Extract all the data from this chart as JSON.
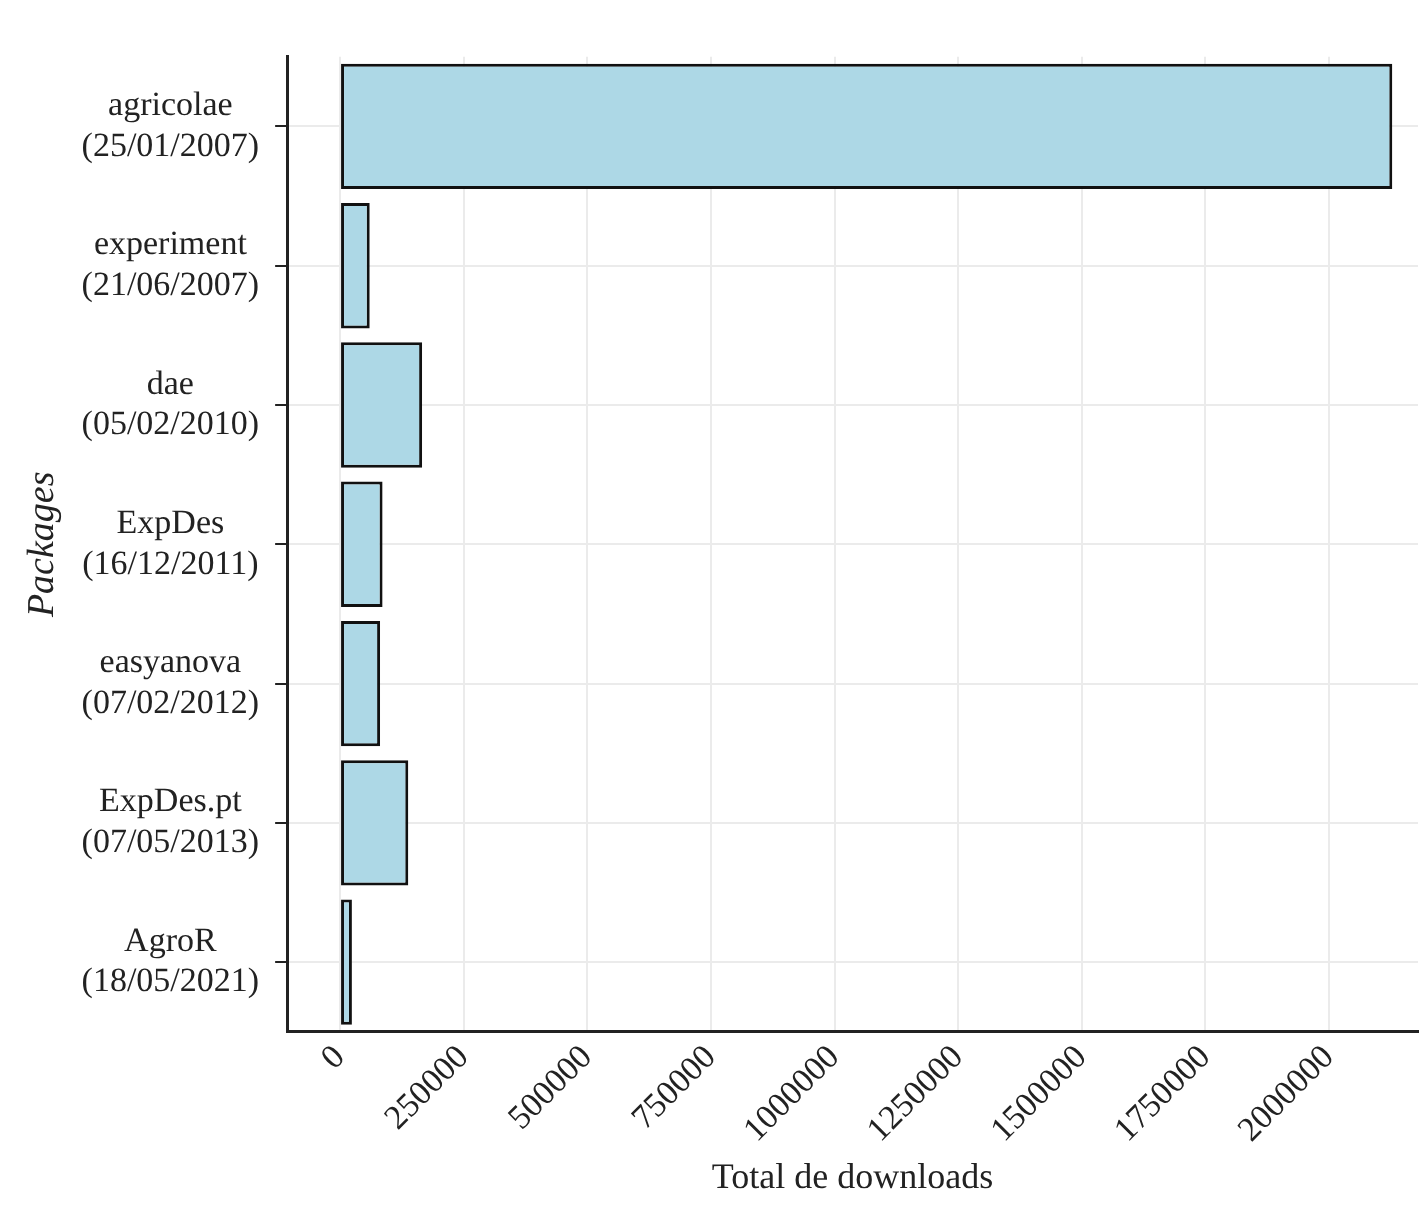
{
  "chart_data": {
    "type": "bar",
    "orientation": "horizontal",
    "xlabel": "Total de downloads",
    "ylabel": "Packages",
    "categories": [
      "agricolae\n(25/01/2007)",
      "experiment\n(21/06/2007)",
      "dae\n(05/02/2010)",
      "ExpDes\n(16/12/2011)",
      "easyanova\n(07/02/2012)",
      "ExpDes.pt\n(07/05/2013)",
      "AgroR\n(18/05/2021)"
    ],
    "values": [
      2128000,
      60000,
      166000,
      86000,
      81000,
      138000,
      24000
    ],
    "color": "#add8e6",
    "xlim": [
      -107000,
      2180000
    ],
    "xticks": [
      0,
      250000,
      500000,
      750000,
      1000000,
      1250000,
      1500000,
      1750000,
      2000000
    ],
    "grid": true
  }
}
